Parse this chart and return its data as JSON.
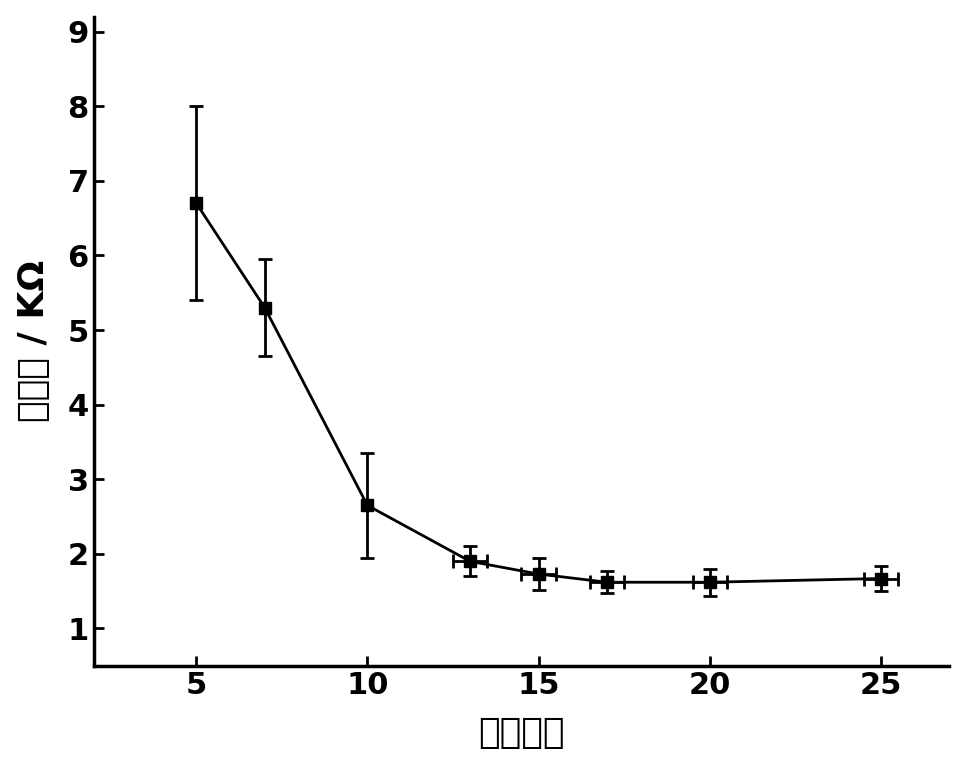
{
  "x": [
    5,
    7,
    10,
    13,
    15,
    17,
    20,
    25
  ],
  "y": [
    6.7,
    5.3,
    2.65,
    1.9,
    1.73,
    1.62,
    1.62,
    1.67
  ],
  "yerr": [
    1.3,
    0.65,
    0.7,
    0.2,
    0.22,
    0.15,
    0.18,
    0.17
  ],
  "xerr": [
    0,
    0,
    0,
    0.5,
    0.5,
    0.5,
    0.5,
    0.5
  ],
  "xlabel": "网印次数",
  "ylabel": "电阻值 / KΩ",
  "xlim": [
    2,
    27
  ],
  "ylim": [
    0.5,
    9.2
  ],
  "yticks": [
    1,
    2,
    3,
    4,
    5,
    6,
    7,
    8,
    9
  ],
  "xticks": [
    5,
    10,
    15,
    20,
    25
  ],
  "line_color": "#000000",
  "marker": "s",
  "marker_size": 8,
  "line_width": 2.0,
  "background_color": "#ffffff",
  "label_fontsize": 26,
  "tick_fontsize": 22
}
